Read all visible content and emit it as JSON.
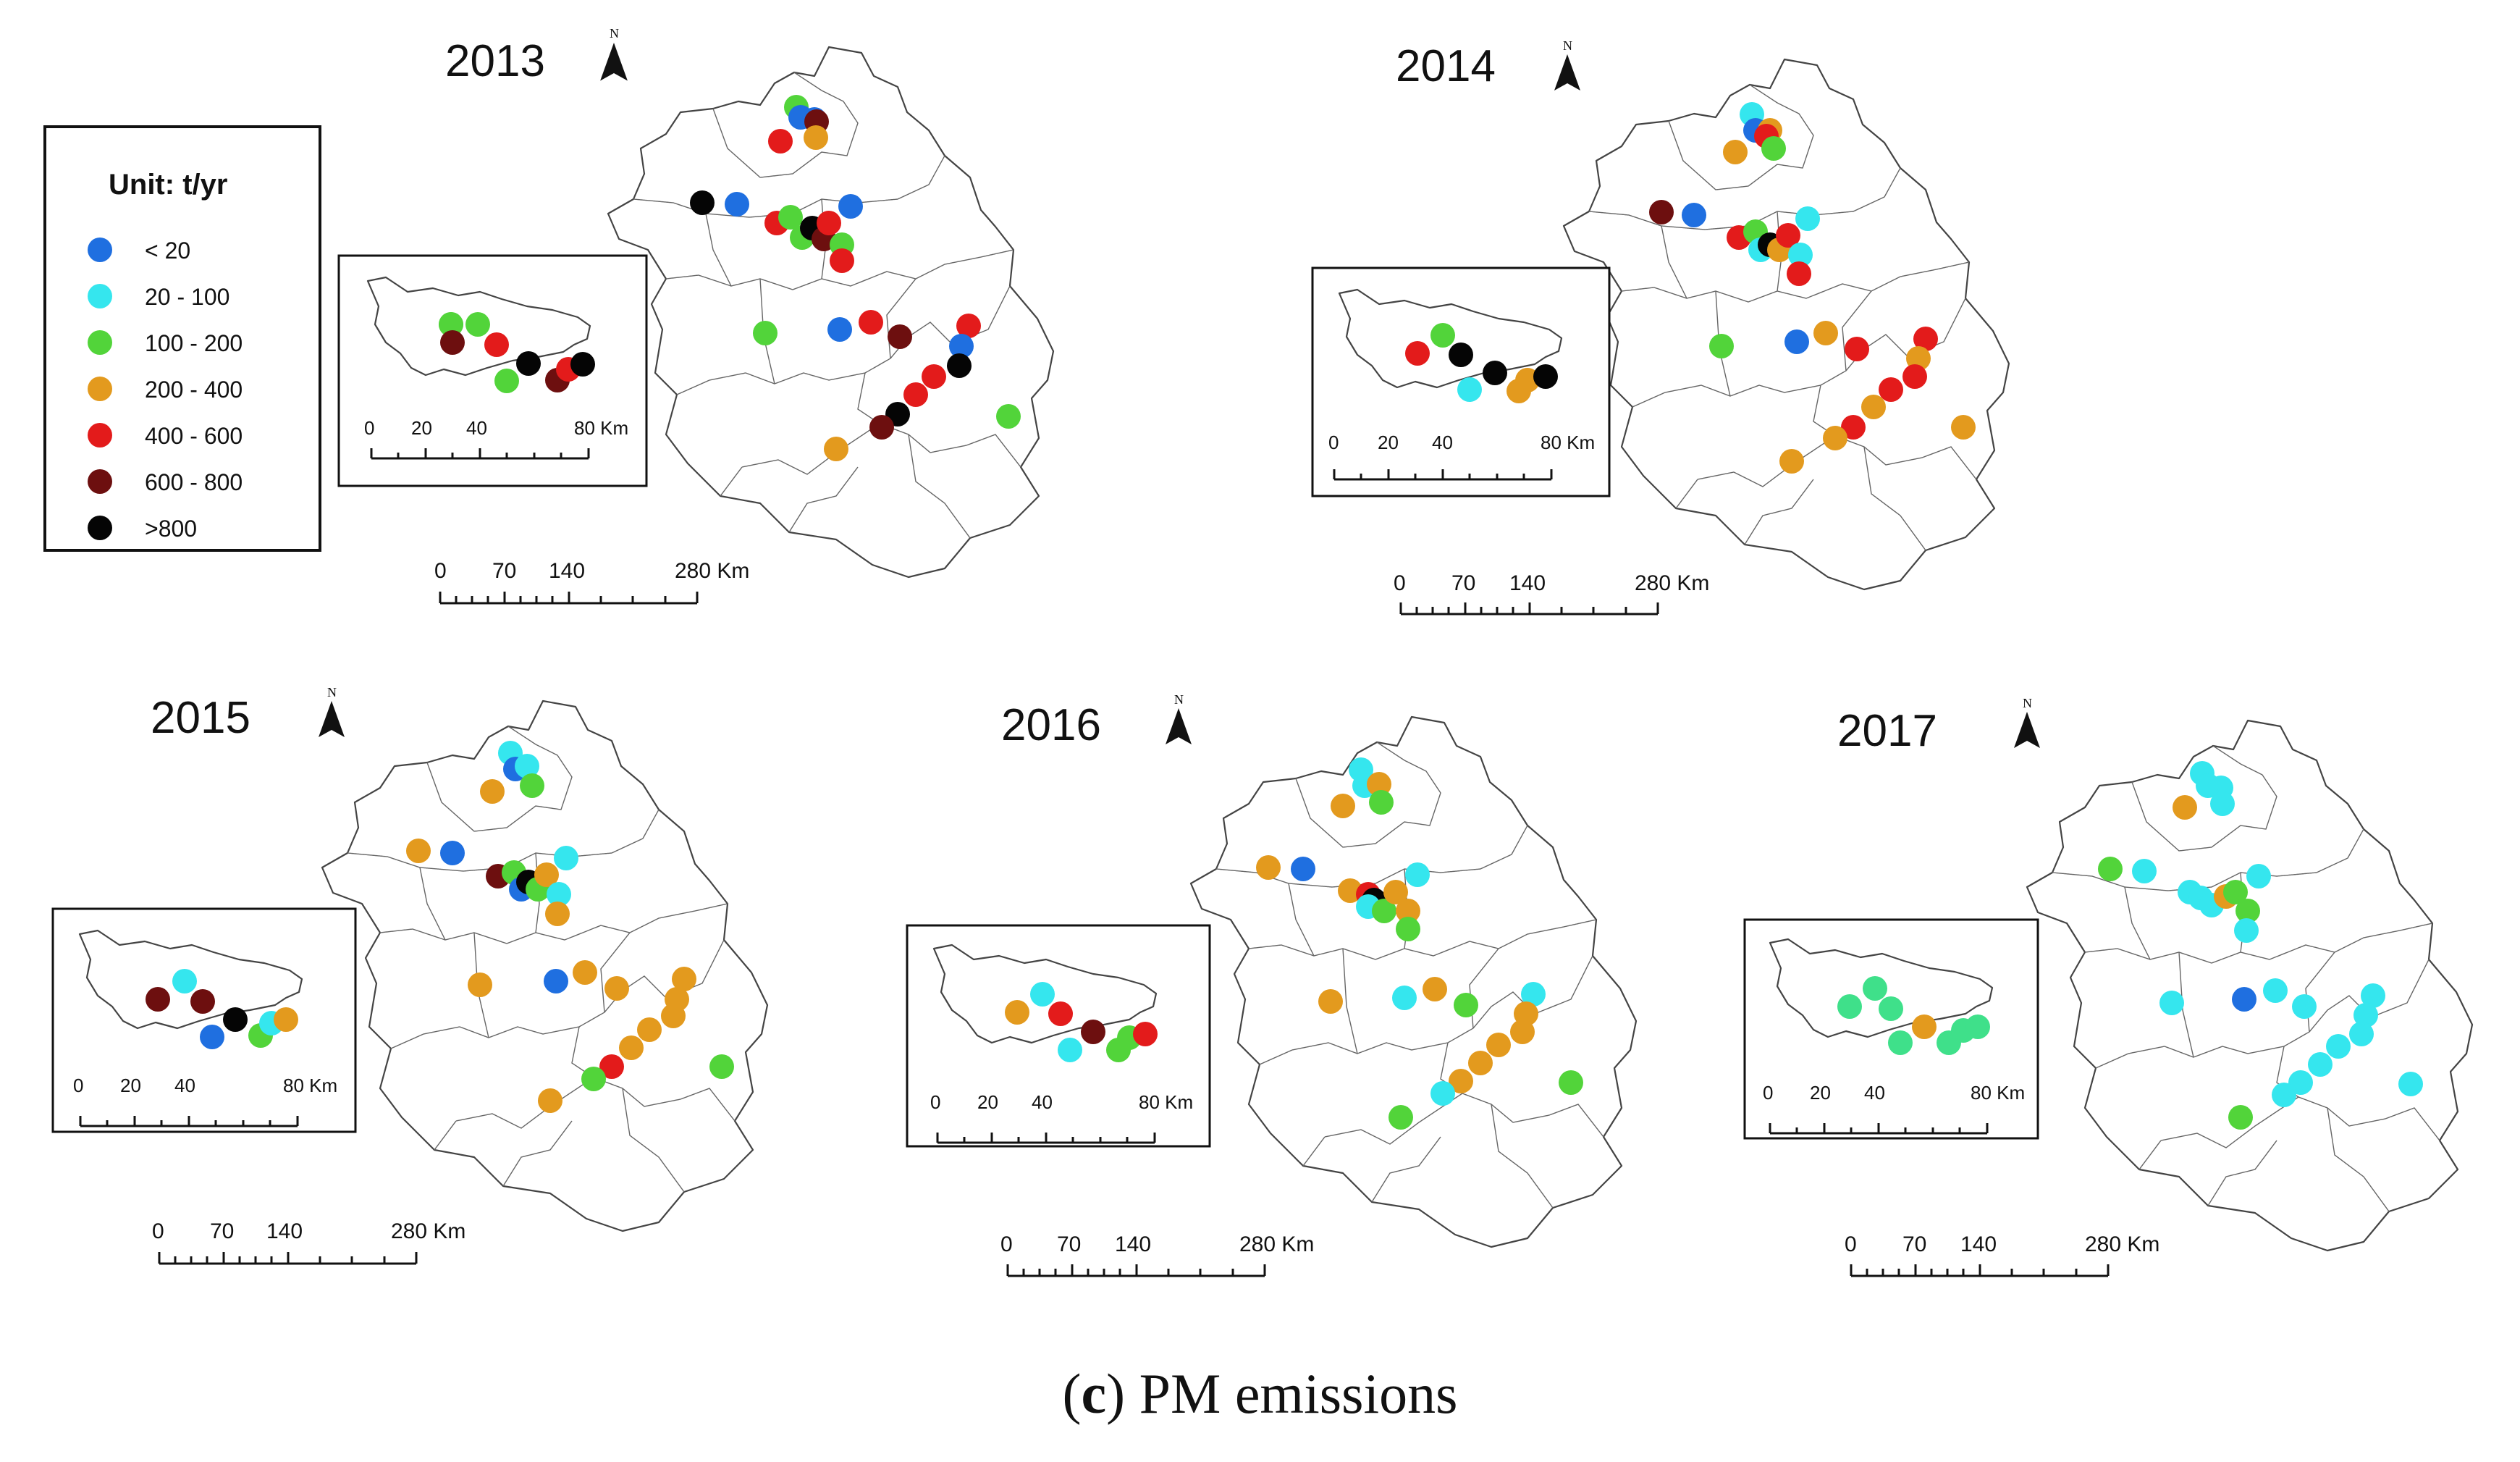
{
  "figure": {
    "caption_paren_open": "(",
    "caption_letter": "c",
    "caption_paren_close": ")",
    "caption_text": " PM emissions"
  },
  "legend": {
    "title": "Unit: t/yr",
    "items": [
      {
        "label": "< 20",
        "color": "#1f6fe0"
      },
      {
        "label": "20 - 100",
        "color": "#35e6ee"
      },
      {
        "label": "100 - 200",
        "color": "#52d43a"
      },
      {
        "label": "200 - 400",
        "color": "#e39a1e"
      },
      {
        "label": "400 - 600",
        "color": "#e31b1b"
      },
      {
        "label": "600 - 800",
        "color": "#6d0f0f"
      },
      {
        "label": ">800",
        "color": "#050505"
      }
    ]
  },
  "north_label": "N",
  "main_scale_labels": [
    "0",
    "70",
    "140",
    "280 Km"
  ],
  "inset_scale_labels": [
    "0",
    "20",
    "40",
    "80 Km"
  ],
  "years": [
    "2013",
    "2014",
    "2015",
    "2016",
    "2017"
  ]
}
